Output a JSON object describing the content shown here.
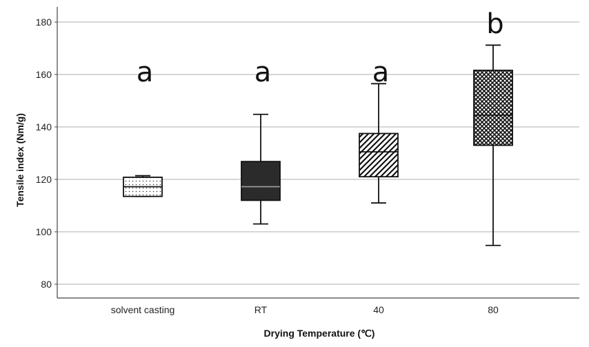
{
  "chart_data": {
    "type": "boxplot",
    "title": "",
    "xlabel": "Drying Temperature (℃)",
    "ylabel": "Tensile index (Nm/g)",
    "ylim": [
      75,
      185
    ],
    "yticks": [
      80,
      100,
      120,
      140,
      160,
      180
    ],
    "grid": true,
    "categories": [
      "solvent casting",
      "RT",
      "40",
      "80"
    ],
    "boxes": [
      {
        "category": "solvent casting",
        "min": 113.5,
        "q1": 113.5,
        "median": 117.2,
        "q3": 120.8,
        "max": 121.4,
        "pattern": "dots",
        "letter": "a"
      },
      {
        "category": "RT",
        "min": 103,
        "q1": 112,
        "median": 117.2,
        "q3": 126.8,
        "max": 144.8,
        "pattern": "solid",
        "letter": "a"
      },
      {
        "category": "40",
        "min": 111,
        "q1": 121,
        "median": 130.5,
        "q3": 137.5,
        "max": 156.5,
        "pattern": "diagonal",
        "letter": "a"
      },
      {
        "category": "80",
        "min": 94.8,
        "q1": 133,
        "median": 144.5,
        "q3": 161.6,
        "max": 171.2,
        "pattern": "crosshatch",
        "letter": "b"
      }
    ],
    "colors": {
      "grid": "#bdbdbd",
      "axis": "#444444",
      "solid_fill": "#2b2b2b",
      "line": "#111111"
    }
  }
}
